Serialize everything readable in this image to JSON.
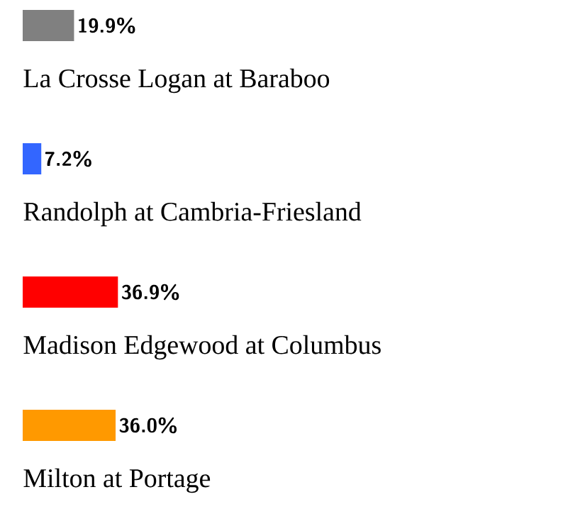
{
  "chart_data": {
    "type": "bar",
    "orientation": "horizontal",
    "categories": [
      "La Crosse Logan at Baraboo",
      "Randolph at Cambria-Friesland",
      "Madison Edgewood at Columbus",
      "Milton at Portage"
    ],
    "values": [
      19.9,
      7.2,
      36.9,
      36.0
    ],
    "colors": [
      "#808080",
      "#3366ff",
      "#ff0000",
      "#ff9900"
    ],
    "value_labels": [
      "19.9%",
      "7.2%",
      "36.9%",
      "36.0%"
    ]
  }
}
